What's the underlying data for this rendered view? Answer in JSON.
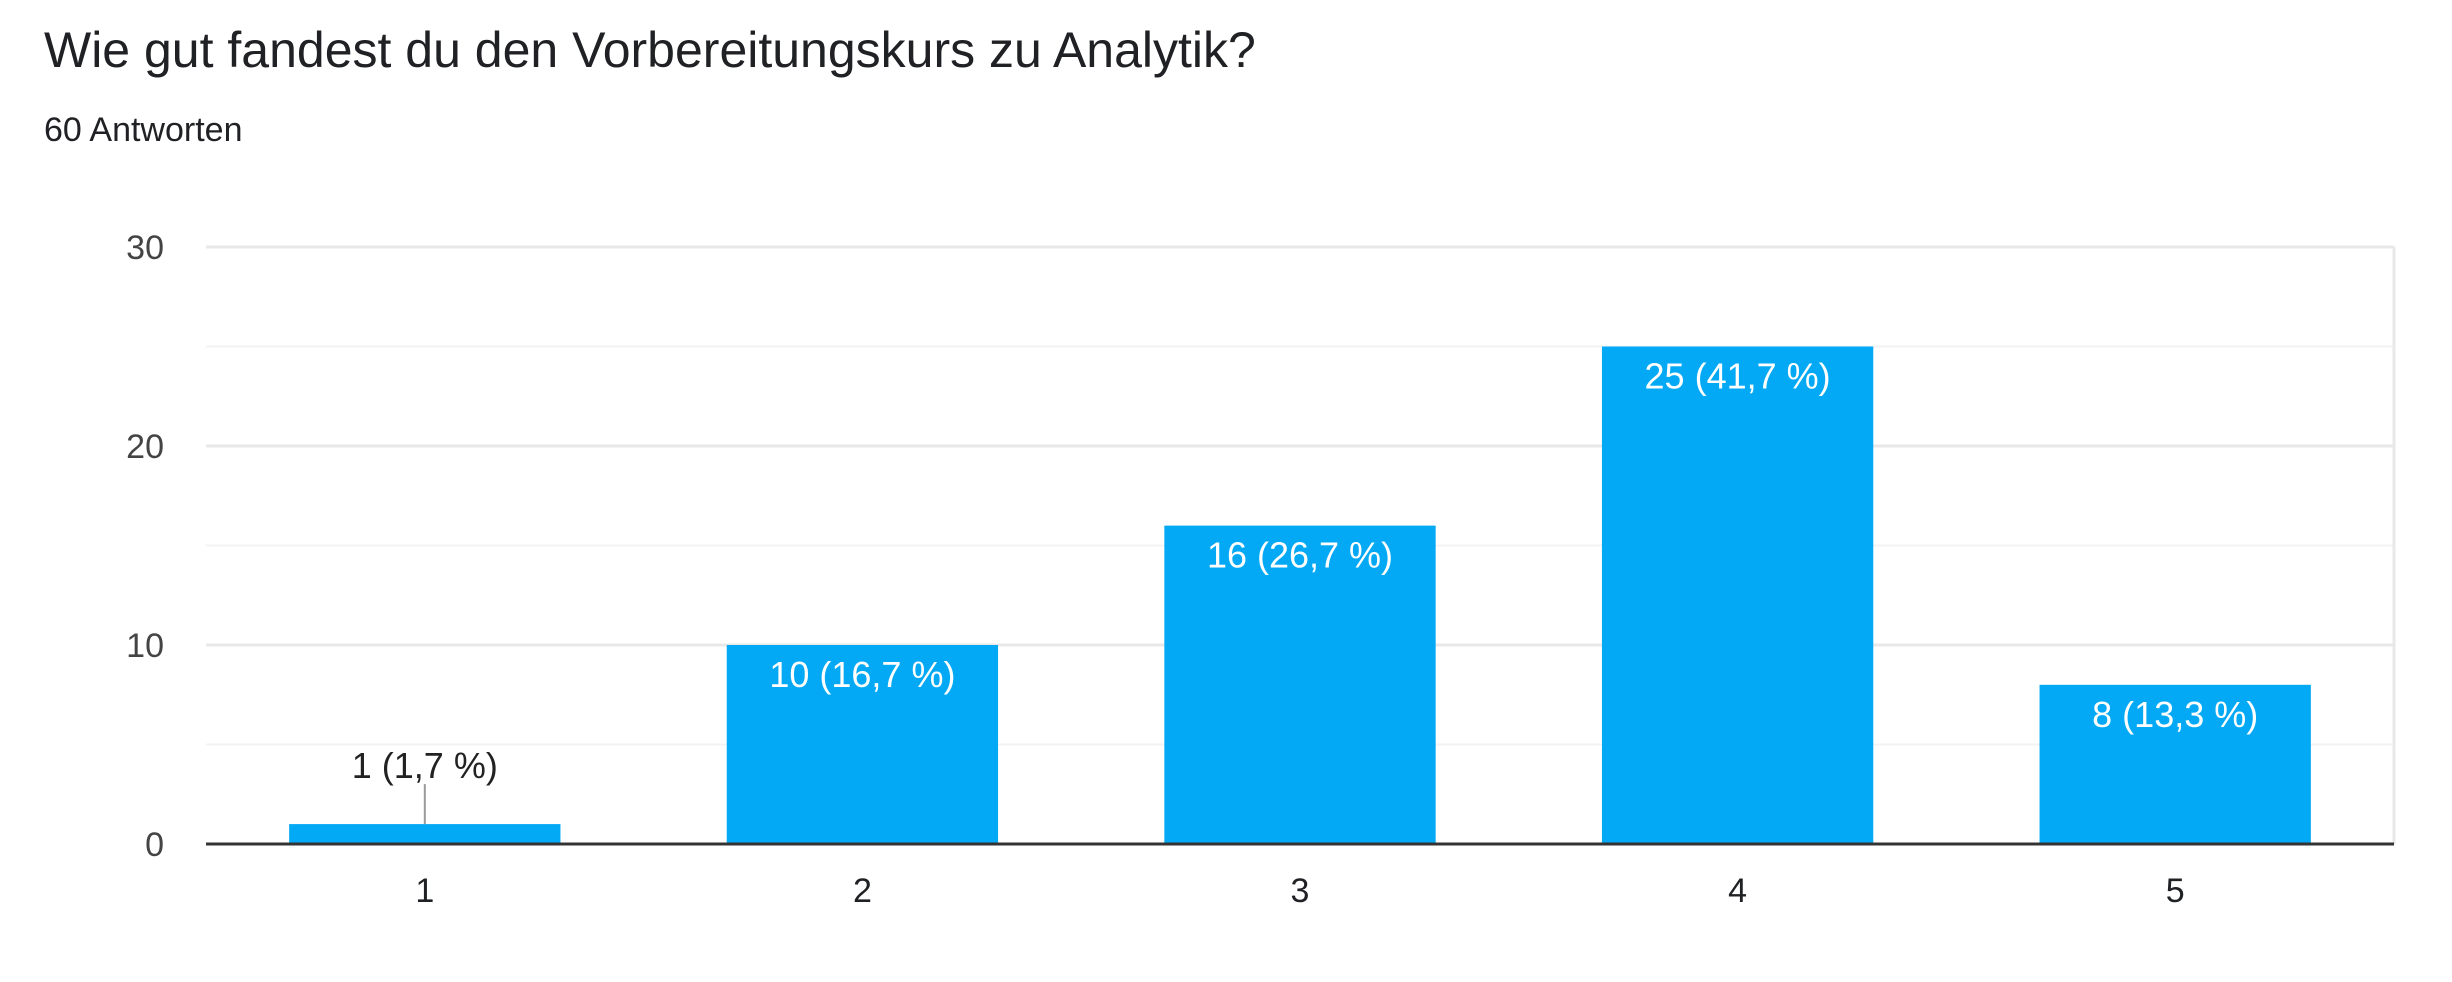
{
  "header": {
    "title": "Wie gut fandest du den Vorbereitungskurs zu Analytik?",
    "responses": "60 Antworten"
  },
  "colors": {
    "bar": "#03a9f4",
    "grid_major": "#e8e8e8",
    "grid_minor": "#f3f3f3",
    "axis": "#333333",
    "text": "#202124",
    "tick": "#444444",
    "label_inside": "#ffffff",
    "label_outside": "#222222",
    "leader": "#999999"
  },
  "chart_data": {
    "type": "bar",
    "categories": [
      "1",
      "2",
      "3",
      "4",
      "5"
    ],
    "values": [
      1,
      10,
      16,
      25,
      8
    ],
    "labels": [
      "1 (1,7 %)",
      "10 (16,7 %)",
      "16 (26,7 %)",
      "25 (41,7 %)",
      "8 (13,3 %)"
    ],
    "ylim": [
      0,
      30
    ],
    "yticks": [
      0,
      10,
      20,
      30
    ],
    "minor_gridlines": [
      5,
      15,
      25
    ],
    "grid": true,
    "legend": "none"
  }
}
